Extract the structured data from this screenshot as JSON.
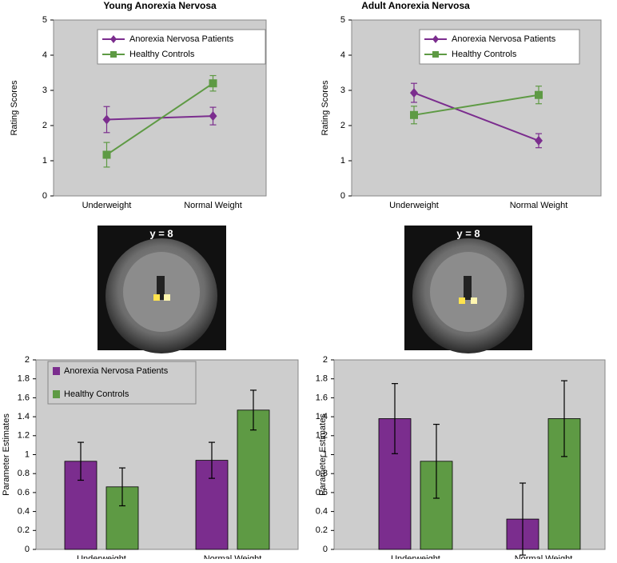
{
  "chart_data": [
    {
      "type": "line",
      "title": "Young Anorexia Nervosa",
      "y_label": "Rating Scores",
      "categories": [
        "Underweight",
        "Normal Weight"
      ],
      "ylim": [
        0,
        5
      ],
      "yticks": [
        0,
        1,
        2,
        3,
        4,
        5
      ],
      "grid": false,
      "series": [
        {
          "name": "Anorexia Nervosa Patients",
          "color": "#7b2d8e",
          "marker": "diamond",
          "values": [
            2.17,
            2.27
          ],
          "errors": [
            0.37,
            0.25
          ]
        },
        {
          "name": "Healthy Controls",
          "color": "#5e9a44",
          "marker": "square",
          "values": [
            1.17,
            3.2
          ],
          "errors": [
            0.35,
            0.22
          ]
        }
      ]
    },
    {
      "type": "line",
      "title": "Adult Anorexia Nervosa",
      "y_label": "Rating Scores",
      "categories": [
        "Underweight",
        "Normal Weight"
      ],
      "ylim": [
        0,
        5
      ],
      "yticks": [
        0,
        1,
        2,
        3,
        4,
        5
      ],
      "grid": false,
      "series": [
        {
          "name": "Anorexia Nervosa Patients",
          "color": "#7b2d8e",
          "marker": "diamond",
          "values": [
            2.93,
            1.57
          ],
          "errors": [
            0.27,
            0.2
          ]
        },
        {
          "name": "Healthy Controls",
          "color": "#5e9a44",
          "marker": "square",
          "values": [
            2.3,
            2.87
          ],
          "errors": [
            0.25,
            0.25
          ]
        }
      ]
    },
    {
      "type": "bar",
      "y_label": "Parameter Estimates",
      "categories": [
        "Underweight",
        "Normal Weight"
      ],
      "ylim": [
        0,
        2
      ],
      "yticks": [
        0,
        0.2,
        0.4,
        0.6,
        0.8,
        1,
        1.2,
        1.4,
        1.6,
        1.8,
        2
      ],
      "grid": false,
      "series": [
        {
          "name": "Anorexia Nervosa Patients",
          "color": "#7b2d8e",
          "values": [
            0.93,
            0.94
          ],
          "errors": [
            0.2,
            0.19
          ]
        },
        {
          "name": "Healthy Controls",
          "color": "#5e9a44",
          "values": [
            0.66,
            1.47
          ],
          "errors": [
            0.2,
            0.21
          ]
        }
      ]
    },
    {
      "type": "bar",
      "y_label": "Parameter Estimates",
      "categories": [
        "Underweight",
        "Normal Weight"
      ],
      "ylim": [
        0,
        2
      ],
      "yticks": [
        0,
        0.2,
        0.4,
        0.6,
        0.8,
        1,
        1.2,
        1.4,
        1.6,
        1.8,
        2
      ],
      "grid": false,
      "series": [
        {
          "name": "Anorexia Nervosa Patients",
          "color": "#7b2d8e",
          "values": [
            1.38,
            0.32
          ],
          "errors": [
            0.37,
            0.38
          ]
        },
        {
          "name": "Healthy Controls",
          "color": "#5e9a44",
          "values": [
            0.93,
            1.38
          ],
          "errors": [
            0.39,
            0.4
          ]
        }
      ]
    }
  ],
  "images": [
    {
      "label": "y = 8"
    },
    {
      "label": "y = 8"
    }
  ]
}
